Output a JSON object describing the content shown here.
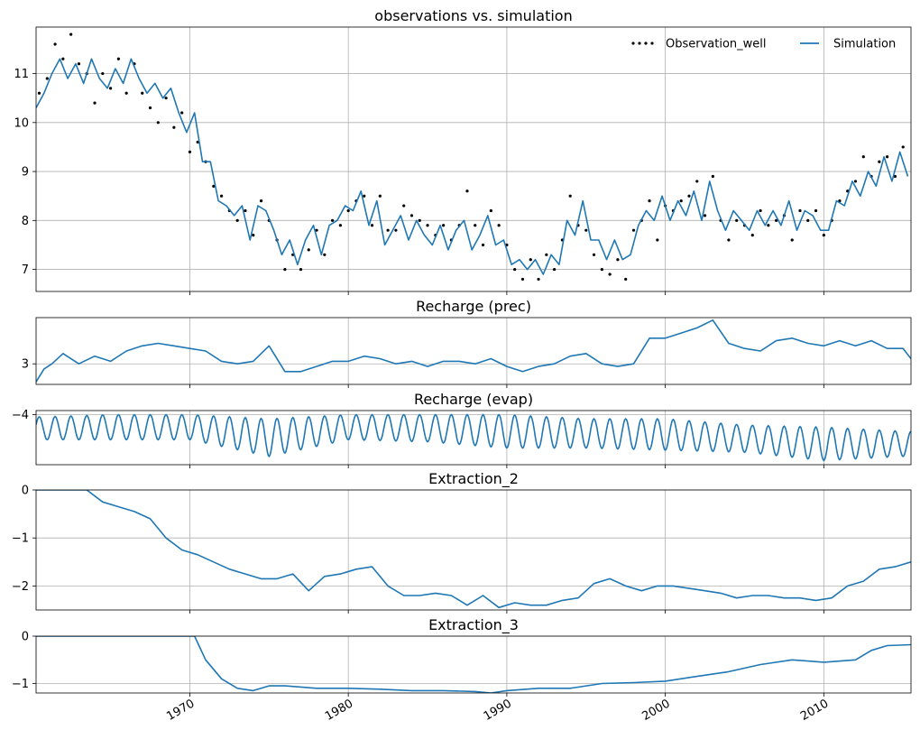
{
  "chart_data": [
    {
      "type": "line",
      "title": "observations vs. simulation",
      "xlim": [
        1960.3,
        2015.5
      ],
      "ylim": [
        6.55,
        11.95
      ],
      "yticks": [
        7,
        8,
        9,
        10,
        11
      ],
      "grid": true,
      "legend": {
        "placement": "top-right",
        "columns": 2
      },
      "series": [
        {
          "name": "Observation_well",
          "style": "dots",
          "color": "#000000",
          "x": [
            1960.5,
            1961,
            1961.5,
            1962,
            1962.5,
            1963,
            1963.5,
            1964,
            1964.5,
            1965,
            1965.5,
            1966,
            1966.5,
            1967,
            1967.5,
            1968,
            1968.5,
            1969,
            1969.5,
            1970,
            1970.5,
            1971,
            1971.5,
            1972,
            1972.5,
            1973,
            1973.5,
            1974,
            1974.5,
            1975,
            1975.5,
            1976,
            1976.5,
            1977,
            1977.5,
            1978,
            1978.5,
            1979,
            1979.5,
            1980,
            1980.5,
            1981,
            1981.5,
            1982,
            1982.5,
            1983,
            1983.5,
            1984,
            1984.5,
            1985,
            1985.5,
            1986,
            1986.5,
            1987,
            1987.5,
            1988,
            1988.5,
            1989,
            1989.5,
            1990,
            1990.5,
            1991,
            1991.5,
            1992,
            1992.5,
            1993,
            1993.5,
            1994,
            1994.5,
            1995,
            1995.5,
            1996,
            1996.5,
            1997,
            1997.5,
            1998,
            1998.5,
            1999,
            1999.5,
            2000,
            2000.5,
            2001,
            2001.5,
            2002,
            2002.5,
            2003,
            2003.5,
            2004,
            2004.5,
            2005,
            2005.5,
            2006,
            2006.5,
            2007,
            2007.5,
            2008,
            2008.5,
            2009,
            2009.5,
            2010,
            2010.5,
            2011,
            2011.5,
            2012,
            2012.5,
            2013,
            2013.5,
            2014,
            2014.5,
            2015
          ],
          "y": [
            10.6,
            10.9,
            11.6,
            11.3,
            11.8,
            11.2,
            11.0,
            10.4,
            11.0,
            10.7,
            11.3,
            10.6,
            11.2,
            10.6,
            10.3,
            10.0,
            10.5,
            9.9,
            10.2,
            9.4,
            9.6,
            9.2,
            8.7,
            8.5,
            8.2,
            8.0,
            8.2,
            7.7,
            8.4,
            8.0,
            7.6,
            7.0,
            7.3,
            7.0,
            7.4,
            7.8,
            7.3,
            8.0,
            7.9,
            8.2,
            8.4,
            8.5,
            7.9,
            8.5,
            7.8,
            7.8,
            8.3,
            8.1,
            8.0,
            7.9,
            7.7,
            7.9,
            7.6,
            7.9,
            8.6,
            7.9,
            7.5,
            8.2,
            7.9,
            7.5,
            7.0,
            6.8,
            7.2,
            6.8,
            7.3,
            7.0,
            7.6,
            8.5,
            7.9,
            7.8,
            7.3,
            7.0,
            6.9,
            7.2,
            6.8,
            7.8,
            8.0,
            8.4,
            7.6,
            8.3,
            8.2,
            8.4,
            8.5,
            8.8,
            8.1,
            8.9,
            8.0,
            7.6,
            8.0,
            7.9,
            7.7,
            8.2,
            7.9,
            8.0,
            8.1,
            7.6,
            8.2,
            8.0,
            8.2,
            7.7,
            8.0,
            8.4,
            8.6,
            8.8,
            9.3,
            8.9,
            9.2,
            9.3,
            8.9,
            9.5
          ]
        },
        {
          "name": "Simulation",
          "style": "line",
          "color": "#1f77b4",
          "x": [
            1960.3,
            1960.8,
            1961.3,
            1961.8,
            1962.3,
            1962.8,
            1963.3,
            1963.8,
            1964.3,
            1964.8,
            1965.3,
            1965.8,
            1966.3,
            1966.8,
            1967.3,
            1967.8,
            1968.3,
            1968.8,
            1969.3,
            1969.8,
            1970.3,
            1970.8,
            1971.3,
            1971.8,
            1972.3,
            1972.8,
            1973.3,
            1973.8,
            1974.3,
            1974.8,
            1975.3,
            1975.8,
            1976.3,
            1976.8,
            1977.3,
            1977.8,
            1978.3,
            1978.8,
            1979.3,
            1979.8,
            1980.3,
            1980.8,
            1981.3,
            1981.8,
            1982.3,
            1982.8,
            1983.3,
            1983.8,
            1984.3,
            1984.8,
            1985.3,
            1985.8,
            1986.3,
            1986.8,
            1987.3,
            1987.8,
            1988.3,
            1988.8,
            1989.3,
            1989.8,
            1990.3,
            1990.8,
            1991.3,
            1991.8,
            1992.3,
            1992.8,
            1993.3,
            1993.8,
            1994.3,
            1994.8,
            1995.3,
            1995.8,
            1996.3,
            1996.8,
            1997.3,
            1997.8,
            1998.3,
            1998.8,
            1999.3,
            1999.8,
            2000.3,
            2000.8,
            2001.3,
            2001.8,
            2002.3,
            2002.8,
            2003.3,
            2003.8,
            2004.3,
            2004.8,
            2005.3,
            2005.8,
            2006.3,
            2006.8,
            2007.3,
            2007.8,
            2008.3,
            2008.8,
            2009.3,
            2009.8,
            2010.3,
            2010.8,
            2011.3,
            2011.8,
            2012.3,
            2012.8,
            2013.3,
            2013.8,
            2014.3,
            2014.8,
            2015.3
          ],
          "y": [
            10.3,
            10.6,
            11.0,
            11.3,
            10.9,
            11.2,
            10.8,
            11.3,
            10.9,
            10.7,
            11.1,
            10.8,
            11.3,
            10.9,
            10.6,
            10.8,
            10.5,
            10.7,
            10.2,
            9.8,
            10.2,
            9.2,
            9.2,
            8.4,
            8.3,
            8.1,
            8.3,
            7.6,
            8.3,
            8.2,
            7.8,
            7.3,
            7.6,
            7.1,
            7.6,
            7.9,
            7.3,
            7.9,
            8.0,
            8.3,
            8.2,
            8.6,
            7.9,
            8.4,
            7.5,
            7.8,
            8.1,
            7.6,
            8.0,
            7.7,
            7.5,
            7.9,
            7.4,
            7.8,
            8.0,
            7.4,
            7.7,
            8.1,
            7.5,
            7.6,
            7.1,
            7.2,
            7.0,
            7.2,
            6.9,
            7.3,
            7.1,
            8.0,
            7.7,
            8.4,
            7.6,
            7.6,
            7.2,
            7.6,
            7.2,
            7.3,
            7.9,
            8.2,
            8.0,
            8.5,
            8.0,
            8.4,
            8.1,
            8.6,
            8.0,
            8.8,
            8.2,
            7.8,
            8.2,
            8.0,
            7.8,
            8.2,
            7.9,
            8.2,
            7.9,
            8.4,
            7.8,
            8.2,
            8.1,
            7.8,
            7.8,
            8.4,
            8.3,
            8.8,
            8.5,
            9.0,
            8.7,
            9.3,
            8.8,
            9.4,
            8.9
          ]
        }
      ]
    },
    {
      "type": "line",
      "title": "Recharge (prec)",
      "xlim": [
        1960.3,
        2015.5
      ],
      "ylim": [
        2.6,
        3.9
      ],
      "yticks": [
        3
      ],
      "grid": true,
      "series": [
        {
          "color": "#1f77b4",
          "x": [
            1960.3,
            1960.8,
            1961.3,
            1962,
            1963,
            1964,
            1965,
            1966,
            1967,
            1968,
            1969,
            1970,
            1971,
            1972,
            1973,
            1974,
            1975,
            1976,
            1977,
            1978,
            1979,
            1980,
            1981,
            1982,
            1983,
            1984,
            1985,
            1986,
            1987,
            1988,
            1989,
            1990,
            1991,
            1992,
            1993,
            1994,
            1995,
            1996,
            1997,
            1998,
            1999,
            2000,
            2001,
            2002,
            2003,
            2004,
            2005,
            2006,
            2007,
            2008,
            2009,
            2010,
            2011,
            2012,
            2013,
            2014,
            2015,
            2015.5
          ],
          "y": [
            2.65,
            2.9,
            3.0,
            3.2,
            3.0,
            3.15,
            3.05,
            3.25,
            3.35,
            3.4,
            3.35,
            3.3,
            3.25,
            3.05,
            3.0,
            3.05,
            3.35,
            2.85,
            2.85,
            2.95,
            3.05,
            3.05,
            3.15,
            3.1,
            3.0,
            3.05,
            2.95,
            3.05,
            3.05,
            3.0,
            3.1,
            2.95,
            2.85,
            2.95,
            3.0,
            3.15,
            3.2,
            3.0,
            2.95,
            3.0,
            3.5,
            3.5,
            3.6,
            3.7,
            3.85,
            3.4,
            3.3,
            3.25,
            3.45,
            3.5,
            3.4,
            3.35,
            3.45,
            3.35,
            3.45,
            3.3,
            3.3,
            3.1
          ]
        }
      ]
    },
    {
      "type": "line",
      "title": "Recharge (evap)",
      "xlim": [
        1960.3,
        2015.5
      ],
      "ylim": [
        -5.2,
        -3.9
      ],
      "yticks": [
        -4
      ],
      "grid": true,
      "series": [
        {
          "color": "#1f77b4",
          "pattern": "annual oscillation",
          "x": [
            1961,
            1965,
            1970,
            1975,
            1980,
            1985,
            1990,
            1995,
            2000,
            2005,
            2010,
            2015
          ],
          "y_peak": [
            -4.05,
            -4.0,
            -4.0,
            -4.1,
            -4.0,
            -4.0,
            -4.0,
            -4.1,
            -4.1,
            -4.25,
            -4.3,
            -4.4
          ],
          "y_trough": [
            -4.6,
            -4.6,
            -4.6,
            -5.0,
            -4.6,
            -4.65,
            -4.8,
            -4.8,
            -4.85,
            -4.9,
            -5.1,
            -5.0
          ]
        }
      ]
    },
    {
      "type": "line",
      "title": "Extraction_2",
      "xlim": [
        1960.3,
        2015.5
      ],
      "ylim": [
        -2.5,
        0
      ],
      "yticks": [
        0,
        -1,
        -2
      ],
      "grid": true,
      "series": [
        {
          "color": "#1f77b4",
          "x": [
            1960.3,
            1963.5,
            1964.5,
            1965.5,
            1966.5,
            1967.5,
            1968.5,
            1969.5,
            1970.5,
            1971.5,
            1972.5,
            1973.5,
            1974.5,
            1975.5,
            1976.5,
            1977.5,
            1978.5,
            1979.5,
            1980.5,
            1981.5,
            1982.5,
            1983.5,
            1984.5,
            1985.5,
            1986.5,
            1987.5,
            1988.5,
            1989.5,
            1990.5,
            1991.5,
            1992.5,
            1993.5,
            1994.5,
            1995.5,
            1996.5,
            1997.5,
            1998.5,
            1999.5,
            2000.5,
            2001.5,
            2002.5,
            2003.5,
            2004.5,
            2005.5,
            2006.5,
            2007.5,
            2008.5,
            2009.5,
            2010.5,
            2011.5,
            2012.5,
            2013.5,
            2014.5,
            2015.5
          ],
          "y": [
            0,
            0,
            -0.25,
            -0.35,
            -0.45,
            -0.6,
            -1.0,
            -1.25,
            -1.35,
            -1.5,
            -1.65,
            -1.75,
            -1.85,
            -1.85,
            -1.75,
            -2.1,
            -1.8,
            -1.75,
            -1.65,
            -1.6,
            -2.0,
            -2.2,
            -2.2,
            -2.15,
            -2.2,
            -2.4,
            -2.2,
            -2.45,
            -2.35,
            -2.4,
            -2.4,
            -2.3,
            -2.25,
            -1.95,
            -1.85,
            -2.0,
            -2.1,
            -2.0,
            -2.0,
            -2.05,
            -2.1,
            -2.15,
            -2.25,
            -2.2,
            -2.2,
            -2.25,
            -2.25,
            -2.3,
            -2.25,
            -2.0,
            -1.9,
            -1.65,
            -1.6,
            -1.5
          ]
        }
      ]
    },
    {
      "type": "line",
      "title": "Extraction_3",
      "xlim": [
        1960.3,
        2015.5
      ],
      "ylim": [
        -1.2,
        0
      ],
      "yticks": [
        0,
        -1
      ],
      "xticks": [
        1970,
        1980,
        1990,
        2000,
        2010
      ],
      "grid": true,
      "series": [
        {
          "color": "#1f77b4",
          "x": [
            1960.3,
            1970.3,
            1971,
            1972,
            1973,
            1974,
            1975,
            1976,
            1978,
            1980,
            1982,
            1984,
            1986,
            1988,
            1989,
            1990,
            1992,
            1994,
            1996,
            1998,
            2000,
            2002,
            2004,
            2006,
            2008,
            2010,
            2012,
            2013,
            2014,
            2015.5
          ],
          "y": [
            0,
            0,
            -0.5,
            -0.9,
            -1.1,
            -1.15,
            -1.05,
            -1.05,
            -1.1,
            -1.1,
            -1.12,
            -1.15,
            -1.15,
            -1.17,
            -1.2,
            -1.15,
            -1.1,
            -1.1,
            -1.0,
            -0.98,
            -0.95,
            -0.85,
            -0.75,
            -0.6,
            -0.5,
            -0.55,
            -0.5,
            -0.3,
            -0.2,
            -0.18
          ]
        }
      ]
    }
  ]
}
